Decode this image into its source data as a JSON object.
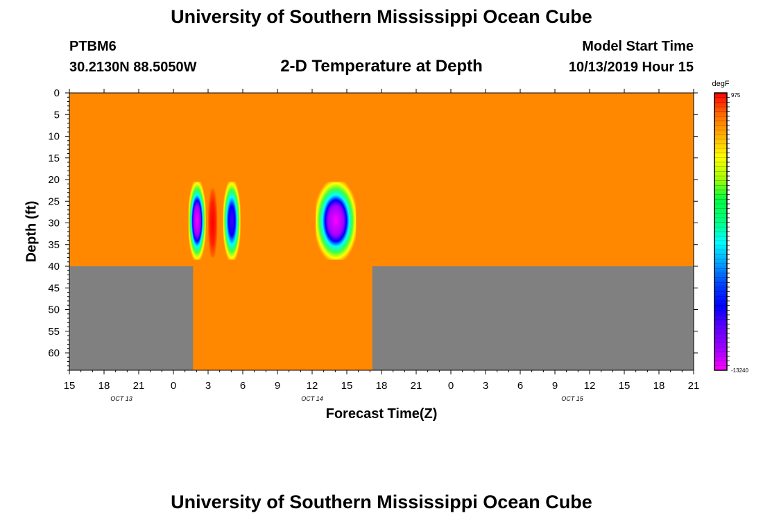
{
  "header": {
    "title": "University of Southern Mississippi Ocean Cube",
    "station_id": "PTBM6",
    "coordinates": "30.2130N 88.5050W",
    "plot_title": "2-D Temperature at Depth",
    "start_label": "Model Start Time",
    "start_value": "10/13/2019 Hour 15"
  },
  "footer": {
    "title": "University of Southern Mississippi Ocean Cube"
  },
  "chart_data": {
    "type": "heatmap",
    "title": "2-D Temperature at Depth",
    "xlabel": "Forecast Time(Z)",
    "ylabel": "Depth (ft)",
    "x_hours_from_start": [
      0,
      54
    ],
    "y_depth_range": [
      0,
      64
    ],
    "x_tick_labels": [
      "15",
      "18",
      "21",
      "0",
      "3",
      "6",
      "9",
      "12",
      "15",
      "18",
      "21",
      "0",
      "3",
      "6",
      "9",
      "12",
      "15",
      "18",
      "21"
    ],
    "y_tick_labels": [
      "0",
      "5",
      "10",
      "15",
      "20",
      "25",
      "30",
      "35",
      "40",
      "45",
      "50",
      "55",
      "60"
    ],
    "date_labels": [
      {
        "label": "OCT 13",
        "hour": 4.5
      },
      {
        "label": "OCT 14",
        "hour": 21
      },
      {
        "label": "OCT 15",
        "hour": 43.5
      }
    ],
    "background_color": "#ff8800",
    "seafloor_color": "#808080",
    "seafloor": [
      {
        "hour_start": 0,
        "hour_end": 10.7,
        "depth_from": 40
      },
      {
        "hour_start": 10.7,
        "hour_end": 26.2,
        "depth_from": 64
      },
      {
        "hour_start": 26.2,
        "hour_end": 54,
        "depth_from": 40
      }
    ],
    "anomalies": [
      {
        "hour_start": 10.3,
        "hour_end": 11.8,
        "depth_top": 20.5,
        "depth_bottom": 38.5,
        "core": "#ff00ff"
      },
      {
        "hour_start": 12.0,
        "hour_end": 12.8,
        "depth_top": 22,
        "depth_bottom": 38,
        "core": "#ff0000"
      },
      {
        "hour_start": 13.3,
        "hour_end": 14.8,
        "depth_top": 20.5,
        "depth_bottom": 38.5,
        "core": "#0000ff"
      },
      {
        "hour_start": 21.3,
        "hour_end": 24.8,
        "depth_top": 20.5,
        "depth_bottom": 38.5,
        "core": "#ff00ff"
      }
    ],
    "colorbar": {
      "unit": "degF",
      "top_label": "975",
      "bottom_label": "-13240",
      "colors": [
        "#ff0000",
        "#ff6a00",
        "#ffb000",
        "#ffff00",
        "#a8ff00",
        "#00ff40",
        "#00ff80",
        "#00ffff",
        "#00a0ff",
        "#0040ff",
        "#0000ff",
        "#6000ff",
        "#a000ff",
        "#ff00ff"
      ]
    }
  }
}
